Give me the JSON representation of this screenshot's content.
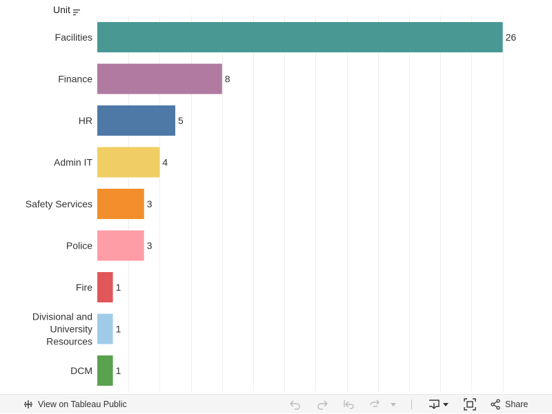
{
  "chart_data": {
    "type": "bar",
    "orientation": "horizontal",
    "axis_title": "Unit",
    "categories": [
      "Facilities",
      "Finance",
      "HR",
      "Admin IT",
      "Safety Services",
      "Police",
      "Fire",
      "Divisional and University Resources",
      "DCM"
    ],
    "category_lines": [
      [
        "Facilities"
      ],
      [
        "Finance"
      ],
      [
        "HR"
      ],
      [
        "Admin IT"
      ],
      [
        "Safety Services"
      ],
      [
        "Police"
      ],
      [
        "Fire"
      ],
      [
        "Divisional and",
        "University",
        "Resources"
      ],
      [
        "DCM"
      ]
    ],
    "values": [
      26,
      8,
      5,
      4,
      3,
      3,
      1,
      1,
      1
    ],
    "colors": [
      "#499894",
      "#b07aa1",
      "#4e79a7",
      "#f1ce63",
      "#f28e2b",
      "#ff9da7",
      "#e15759",
      "#a0cbe8",
      "#59a14f"
    ],
    "xlim": [
      0,
      27
    ],
    "grid_step": 2
  },
  "toolbar": {
    "view_label": "View on Tableau Public",
    "share_label": "Share"
  }
}
